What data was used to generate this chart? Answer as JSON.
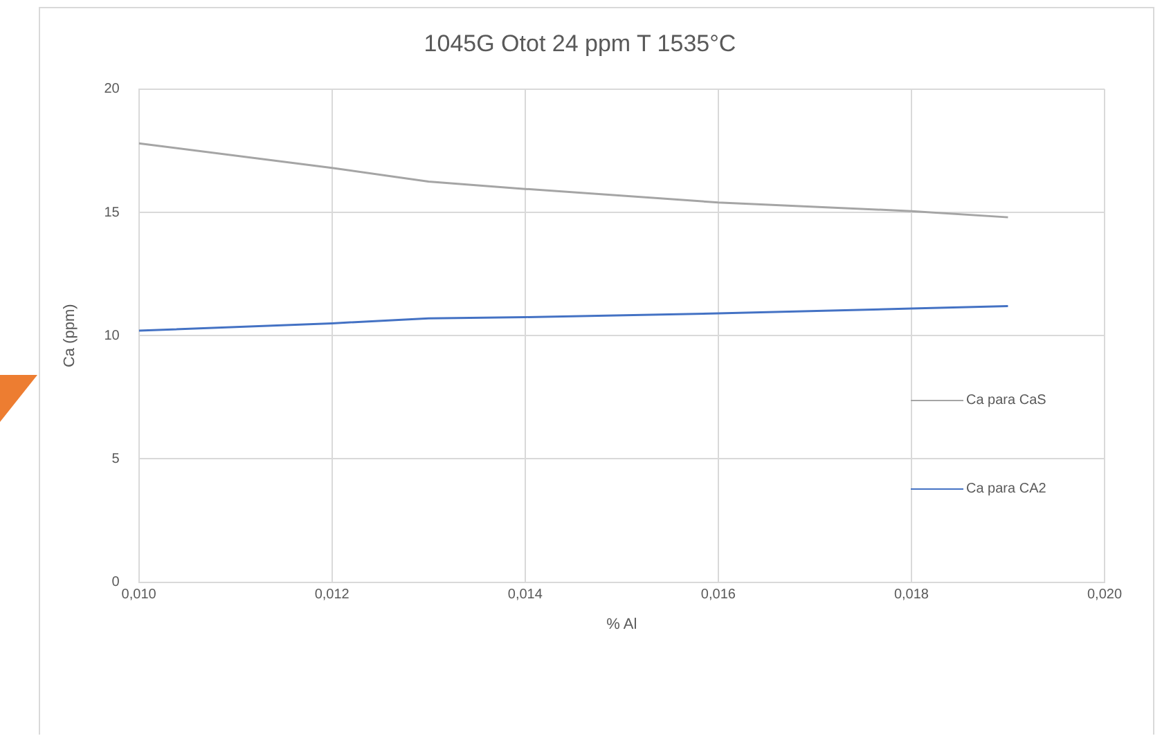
{
  "chart_data": {
    "type": "line",
    "title": "1045G Otot 24 ppm T 1535°C",
    "xlabel": "% Al",
    "ylabel": "Ca (ppm)",
    "x": [
      0.01,
      0.012,
      0.013,
      0.014,
      0.016,
      0.018,
      0.019
    ],
    "series": [
      {
        "name": "Ca para CaS",
        "color": "#a5a5a5",
        "values": [
          17.8,
          16.8,
          16.25,
          15.95,
          15.4,
          15.05,
          14.8
        ]
      },
      {
        "name": "Ca para CA2",
        "color": "#4472c4",
        "values": [
          10.2,
          10.5,
          10.7,
          10.75,
          10.9,
          11.1,
          11.2
        ]
      }
    ],
    "xlim": [
      0.01,
      0.02
    ],
    "xticks": [
      {
        "value": 0.01,
        "label": "0,010"
      },
      {
        "value": 0.012,
        "label": "0,012"
      },
      {
        "value": 0.014,
        "label": "0,014"
      },
      {
        "value": 0.016,
        "label": "0,016"
      },
      {
        "value": 0.018,
        "label": "0,018"
      },
      {
        "value": 0.02,
        "label": "0,020"
      }
    ],
    "ylim": [
      0,
      20
    ],
    "yticks": [
      0,
      5,
      10,
      15,
      20
    ],
    "grid": true,
    "legend": "right",
    "marker": "none",
    "line_style": "solid"
  }
}
